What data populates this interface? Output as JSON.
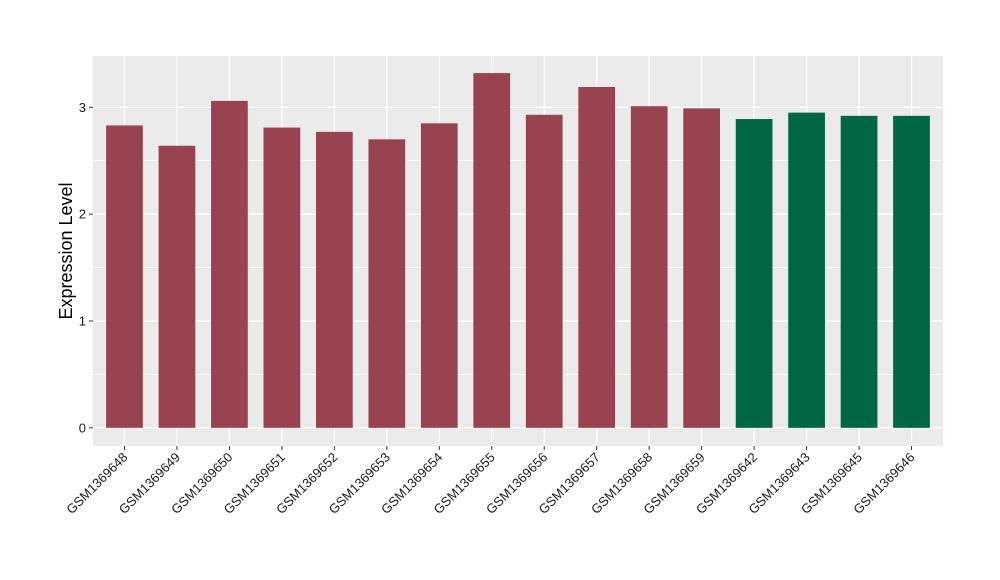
{
  "chart_data": {
    "type": "bar",
    "title": "",
    "xlabel": "",
    "ylabel": "Expression Level",
    "ylim": [
      -0.17,
      3.48
    ],
    "yticks": [
      0,
      1,
      2,
      3
    ],
    "ytick_labels": [
      "0",
      "1",
      "2",
      "3"
    ],
    "grid": true,
    "legend": "none",
    "categories": [
      "GSM1369648",
      "GSM1369649",
      "GSM1369650",
      "GSM1369651",
      "GSM1369652",
      "GSM1369653",
      "GSM1369654",
      "GSM1369655",
      "GSM1369656",
      "GSM1369657",
      "GSM1369658",
      "GSM1369659",
      "GSM1369642",
      "GSM1369643",
      "GSM1369645",
      "GSM1369646"
    ],
    "values": [
      2.83,
      2.64,
      3.06,
      2.81,
      2.77,
      2.7,
      2.85,
      3.32,
      2.93,
      3.19,
      3.01,
      2.99,
      2.89,
      2.95,
      2.92,
      2.92
    ],
    "group": [
      "a",
      "a",
      "a",
      "a",
      "a",
      "a",
      "a",
      "a",
      "a",
      "a",
      "a",
      "a",
      "b",
      "b",
      "b",
      "b"
    ],
    "colors": {
      "a": "#9a4350",
      "b": "#006644",
      "panel": "#ebebeb",
      "grid": "#ffffff"
    }
  }
}
